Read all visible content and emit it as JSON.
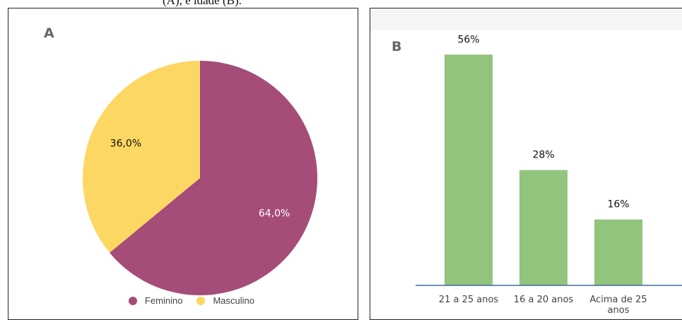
{
  "caption": "(A), e idade (B).",
  "colors": {
    "feminino": "#a54c78",
    "masculino": "#fdd764",
    "bars": "#93c47d",
    "axis": "#3d6e96"
  },
  "chart_data": [
    {
      "panel": "A",
      "type": "pie",
      "title": "",
      "slices": [
        {
          "label": "Feminino",
          "value": 64.0,
          "display": "64,0%",
          "color": "#a54c78"
        },
        {
          "label": "Masculino",
          "value": 36.0,
          "display": "36,0%",
          "color": "#fdd764"
        }
      ],
      "legend": [
        "Feminino",
        "Masculino"
      ],
      "legend_position": "bottom"
    },
    {
      "panel": "B",
      "type": "bar",
      "title": "",
      "categories": [
        "21 a 25 anos",
        "16 a 20 anos",
        "Acima de 25 anos"
      ],
      "category_lines": [
        [
          "21 a 25 anos"
        ],
        [
          "16 a 20 anos"
        ],
        [
          "Acima de 25",
          "anos"
        ]
      ],
      "values": [
        56,
        28,
        16
      ],
      "data_labels": [
        "56%",
        "28%",
        "16%"
      ],
      "ylim": [
        0,
        60
      ],
      "grid": false,
      "xlabel": "",
      "ylabel": ""
    }
  ]
}
